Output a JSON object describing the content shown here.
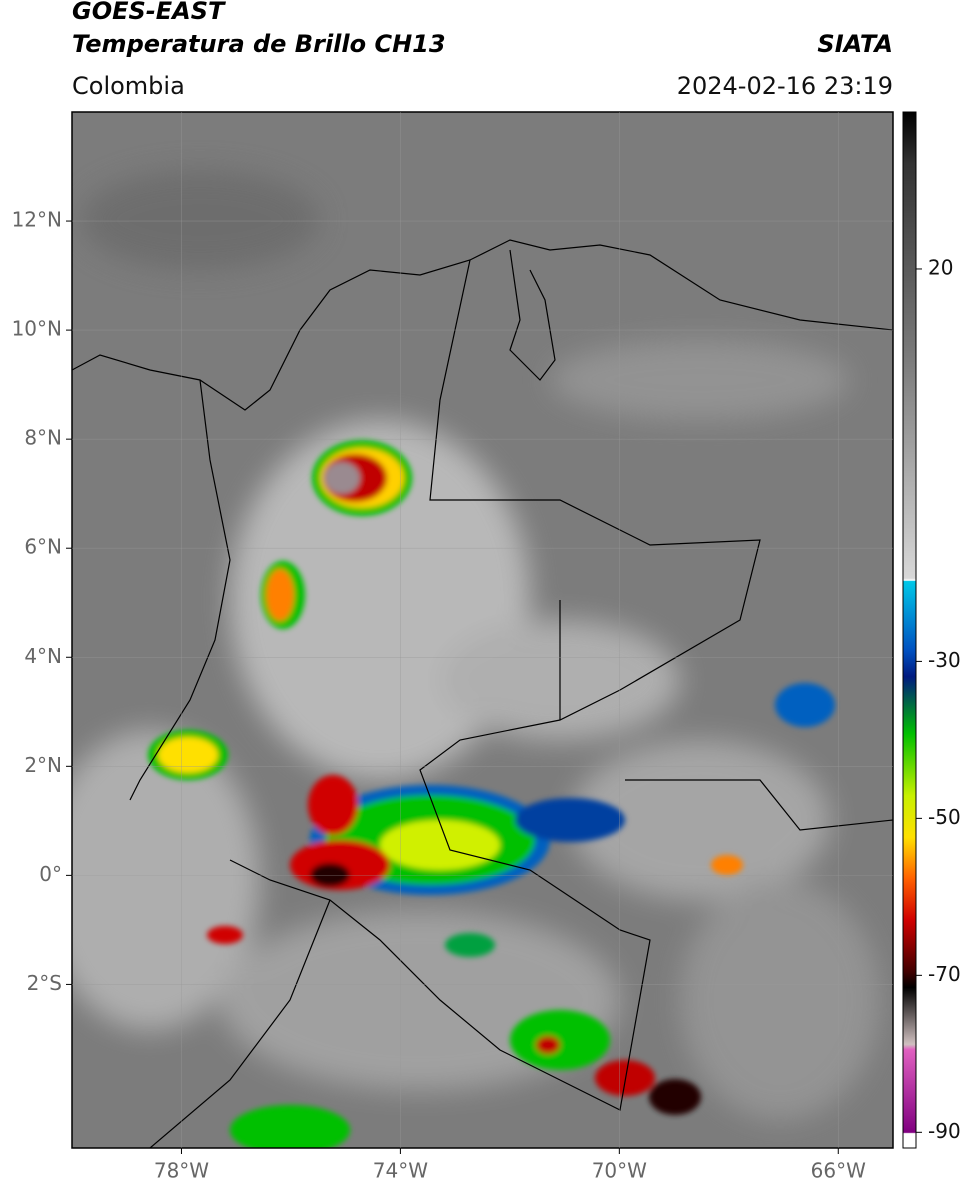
{
  "header": {
    "satellite": "GOES-EAST",
    "product": "Temperatura de Brillo CH13",
    "source": "SIATA",
    "region": "Colombia",
    "datetime": "2024-02-16 23:19"
  },
  "map": {
    "xlim": [
      -80,
      -65
    ],
    "ylim": [
      -5,
      14
    ],
    "xticks": [
      {
        "value": -78,
        "label": "78°W"
      },
      {
        "value": -74,
        "label": "74°W"
      },
      {
        "value": -70,
        "label": "70°W"
      },
      {
        "value": -66,
        "label": "66°W"
      }
    ],
    "yticks": [
      {
        "value": 12,
        "label": "12°N"
      },
      {
        "value": 10,
        "label": "10°N"
      },
      {
        "value": 8,
        "label": "8°N"
      },
      {
        "value": 6,
        "label": "6°N"
      },
      {
        "value": 4,
        "label": "4°N"
      },
      {
        "value": 2,
        "label": "2°N"
      },
      {
        "value": 0,
        "label": "0°"
      },
      {
        "value": -2,
        "label": "2°S"
      }
    ],
    "grid": true
  },
  "colorbar": {
    "lim": [
      -92,
      40
    ],
    "ticks": [
      20,
      -30,
      -50,
      -70,
      -90
    ]
  }
}
